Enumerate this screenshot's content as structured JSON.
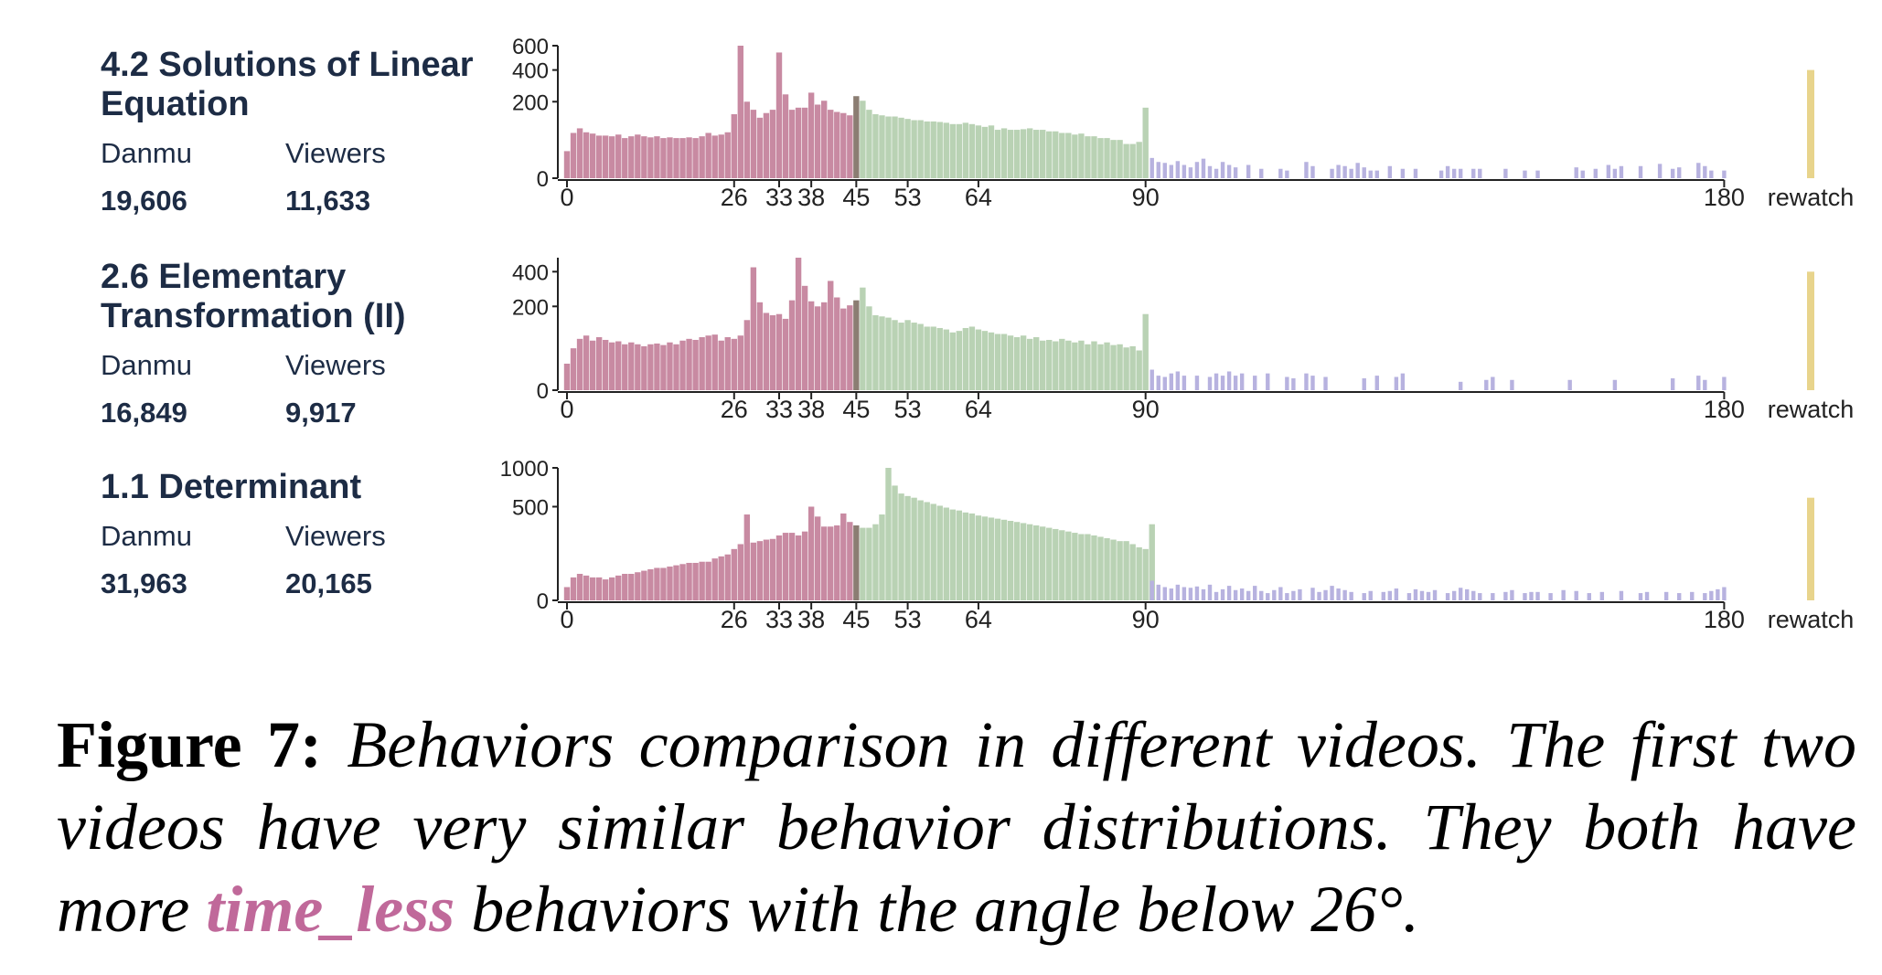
{
  "figure": {
    "label": "Figure 7:",
    "text_before": "Behaviors comparison in different videos. The first two videos have very similar behavior distributions. They both have more",
    "highlight": "time_less",
    "text_after": "behaviors with the angle below 26°.",
    "highlight_color": "#c0699a"
  },
  "colors": {
    "before": "#c88aa2",
    "mark": "#8b7d72",
    "after": "#b9d2b4",
    "over90": "#b7b2df",
    "rewatch": "#e8d48c",
    "text": "#1d2c45"
  },
  "panels": [
    {
      "title": "4.2 Solutions of Linear Equation",
      "stats": {
        "danmu_label": "Danmu",
        "viewers_label": "Viewers",
        "danmu": "19,606",
        "viewers": "11,633"
      }
    },
    {
      "title": "2.6 Elementary Transformation (II)",
      "stats": {
        "danmu_label": "Danmu",
        "viewers_label": "Viewers",
        "danmu": "16,849",
        "viewers": "9,917"
      }
    },
    {
      "title": "1.1 Determinant",
      "stats": {
        "danmu_label": "Danmu",
        "viewers_label": "Viewers",
        "danmu": "31,963",
        "viewers": "20,165"
      }
    }
  ],
  "chart_data": [
    {
      "type": "bar",
      "x_ticks": [
        "0",
        "26",
        "33",
        "38",
        "45",
        "53",
        "64",
        "90",
        "180",
        "rewatch"
      ],
      "y_ticks": [
        0,
        200,
        400,
        600
      ],
      "y_scale": "sqrt",
      "ylim": [
        0,
        600
      ],
      "values_0_90": [
        25,
        70,
        85,
        72,
        68,
        62,
        62,
        60,
        65,
        55,
        60,
        65,
        60,
        57,
        60,
        55,
        57,
        55,
        55,
        57,
        55,
        60,
        70,
        62,
        65,
        72,
        140,
        600,
        200,
        160,
        125,
        145,
        160,
        540,
        240,
        160,
        170,
        170,
        250,
        185,
        205,
        160,
        150,
        145,
        135,
        230,
        205,
        160,
        140,
        135,
        130,
        130,
        125,
        120,
        115,
        115,
        110,
        110,
        108,
        105,
        100,
        100,
        105,
        100,
        95,
        90,
        95,
        80,
        85,
        80,
        80,
        82,
        85,
        80,
        80,
        75,
        75,
        70,
        70,
        65,
        68,
        60,
        60,
        55,
        55,
        50,
        50,
        40,
        40,
        45,
        170
      ],
      "values_90_180": [
        14,
        9,
        8,
        6,
        10,
        6,
        4,
        9,
        13,
        5,
        3,
        9,
        6,
        4,
        0,
        6,
        0,
        3,
        0,
        0,
        3,
        2,
        0,
        0,
        9,
        5,
        0,
        0,
        3,
        6,
        5,
        3,
        8,
        4,
        2,
        2,
        0,
        5,
        0,
        3,
        0,
        3,
        0,
        0,
        0,
        2,
        5,
        3,
        3,
        0,
        3,
        3,
        0,
        0,
        0,
        3,
        0,
        0,
        2,
        0,
        2,
        0,
        0,
        0,
        0,
        0,
        4,
        2,
        0,
        3,
        0,
        6,
        3,
        5,
        0,
        0,
        5,
        0,
        0,
        7,
        0,
        3,
        4,
        0,
        0,
        8,
        5,
        2,
        0,
        2
      ],
      "rewatch": 400
    },
    {
      "type": "bar",
      "x_ticks": [
        "0",
        "26",
        "33",
        "38",
        "45",
        "53",
        "64",
        "90",
        "180",
        "rewatch"
      ],
      "y_ticks": [
        0,
        200,
        400
      ],
      "y_scale": "sqrt",
      "ylim": [
        0,
        500
      ],
      "values_0_90": [
        20,
        50,
        75,
        85,
        70,
        80,
        72,
        65,
        68,
        60,
        65,
        60,
        55,
        60,
        62,
        58,
        65,
        60,
        70,
        75,
        72,
        80,
        85,
        88,
        70,
        80,
        75,
        85,
        140,
        430,
        220,
        170,
        160,
        165,
        145,
        230,
        500,
        310,
        225,
        200,
        220,
        340,
        245,
        190,
        205,
        230,
        300,
        200,
        160,
        155,
        150,
        140,
        130,
        140,
        130,
        125,
        115,
        115,
        110,
        105,
        95,
        100,
        110,
        115,
        105,
        100,
        95,
        90,
        90,
        85,
        80,
        85,
        75,
        80,
        70,
        72,
        68,
        75,
        70,
        65,
        70,
        60,
        68,
        60,
        65,
        58,
        60,
        52,
        55,
        45,
        165
      ],
      "values_90_180": [
        12,
        6,
        5,
        8,
        10,
        6,
        0,
        6,
        0,
        5,
        8,
        6,
        10,
        6,
        8,
        0,
        6,
        0,
        8,
        0,
        0,
        5,
        4,
        0,
        8,
        6,
        0,
        5,
        0,
        0,
        0,
        0,
        0,
        4,
        0,
        6,
        0,
        0,
        5,
        8,
        0,
        0,
        0,
        0,
        0,
        0,
        0,
        0,
        2,
        0,
        0,
        0,
        3,
        5,
        0,
        0,
        3,
        0,
        0,
        0,
        0,
        0,
        0,
        0,
        0,
        3,
        0,
        0,
        0,
        0,
        0,
        0,
        3,
        0,
        0,
        0,
        0,
        0,
        0,
        0,
        0,
        4,
        0,
        0,
        0,
        6,
        3,
        0,
        0,
        5
      ],
      "rewatch": 400
    },
    {
      "type": "bar",
      "x_ticks": [
        "0",
        "26",
        "33",
        "38",
        "45",
        "53",
        "64",
        "90",
        "180",
        "rewatch"
      ],
      "y_ticks": [
        0,
        500,
        1000
      ],
      "y_scale": "sqrt",
      "ylim": [
        0,
        1000
      ],
      "values_0_90": [
        10,
        30,
        40,
        35,
        30,
        30,
        25,
        30,
        35,
        40,
        40,
        45,
        50,
        55,
        60,
        60,
        65,
        70,
        75,
        80,
        80,
        85,
        85,
        100,
        110,
        120,
        150,
        180,
        420,
        190,
        200,
        210,
        215,
        240,
        260,
        260,
        240,
        270,
        500,
        400,
        310,
        310,
        320,
        430,
        350,
        320,
        300,
        300,
        330,
        420,
        1000,
        750,
        650,
        620,
        600,
        570,
        550,
        530,
        510,
        490,
        470,
        460,
        440,
        430,
        410,
        400,
        390,
        380,
        370,
        360,
        350,
        340,
        330,
        320,
        310,
        300,
        290,
        280,
        270,
        260,
        250,
        250,
        240,
        230,
        220,
        210,
        200,
        200,
        180,
        160,
        150,
        330
      ],
      "values_90_180": [
        22,
        14,
        10,
        8,
        14,
        10,
        9,
        11,
        7,
        14,
        4,
        7,
        12,
        6,
        8,
        5,
        12,
        5,
        3,
        6,
        10,
        3,
        5,
        7,
        0,
        9,
        4,
        6,
        12,
        8,
        6,
        4,
        0,
        3,
        5,
        0,
        4,
        5,
        8,
        0,
        3,
        7,
        5,
        4,
        6,
        0,
        3,
        5,
        9,
        7,
        5,
        3,
        0,
        3,
        0,
        4,
        6,
        0,
        3,
        4,
        4,
        0,
        3,
        0,
        6,
        0,
        5,
        0,
        3,
        0,
        4,
        0,
        0,
        5,
        0,
        0,
        3,
        4,
        0,
        0,
        4,
        0,
        3,
        0,
        4,
        0,
        3,
        5,
        7,
        10
      ],
      "rewatch": 600
    }
  ]
}
